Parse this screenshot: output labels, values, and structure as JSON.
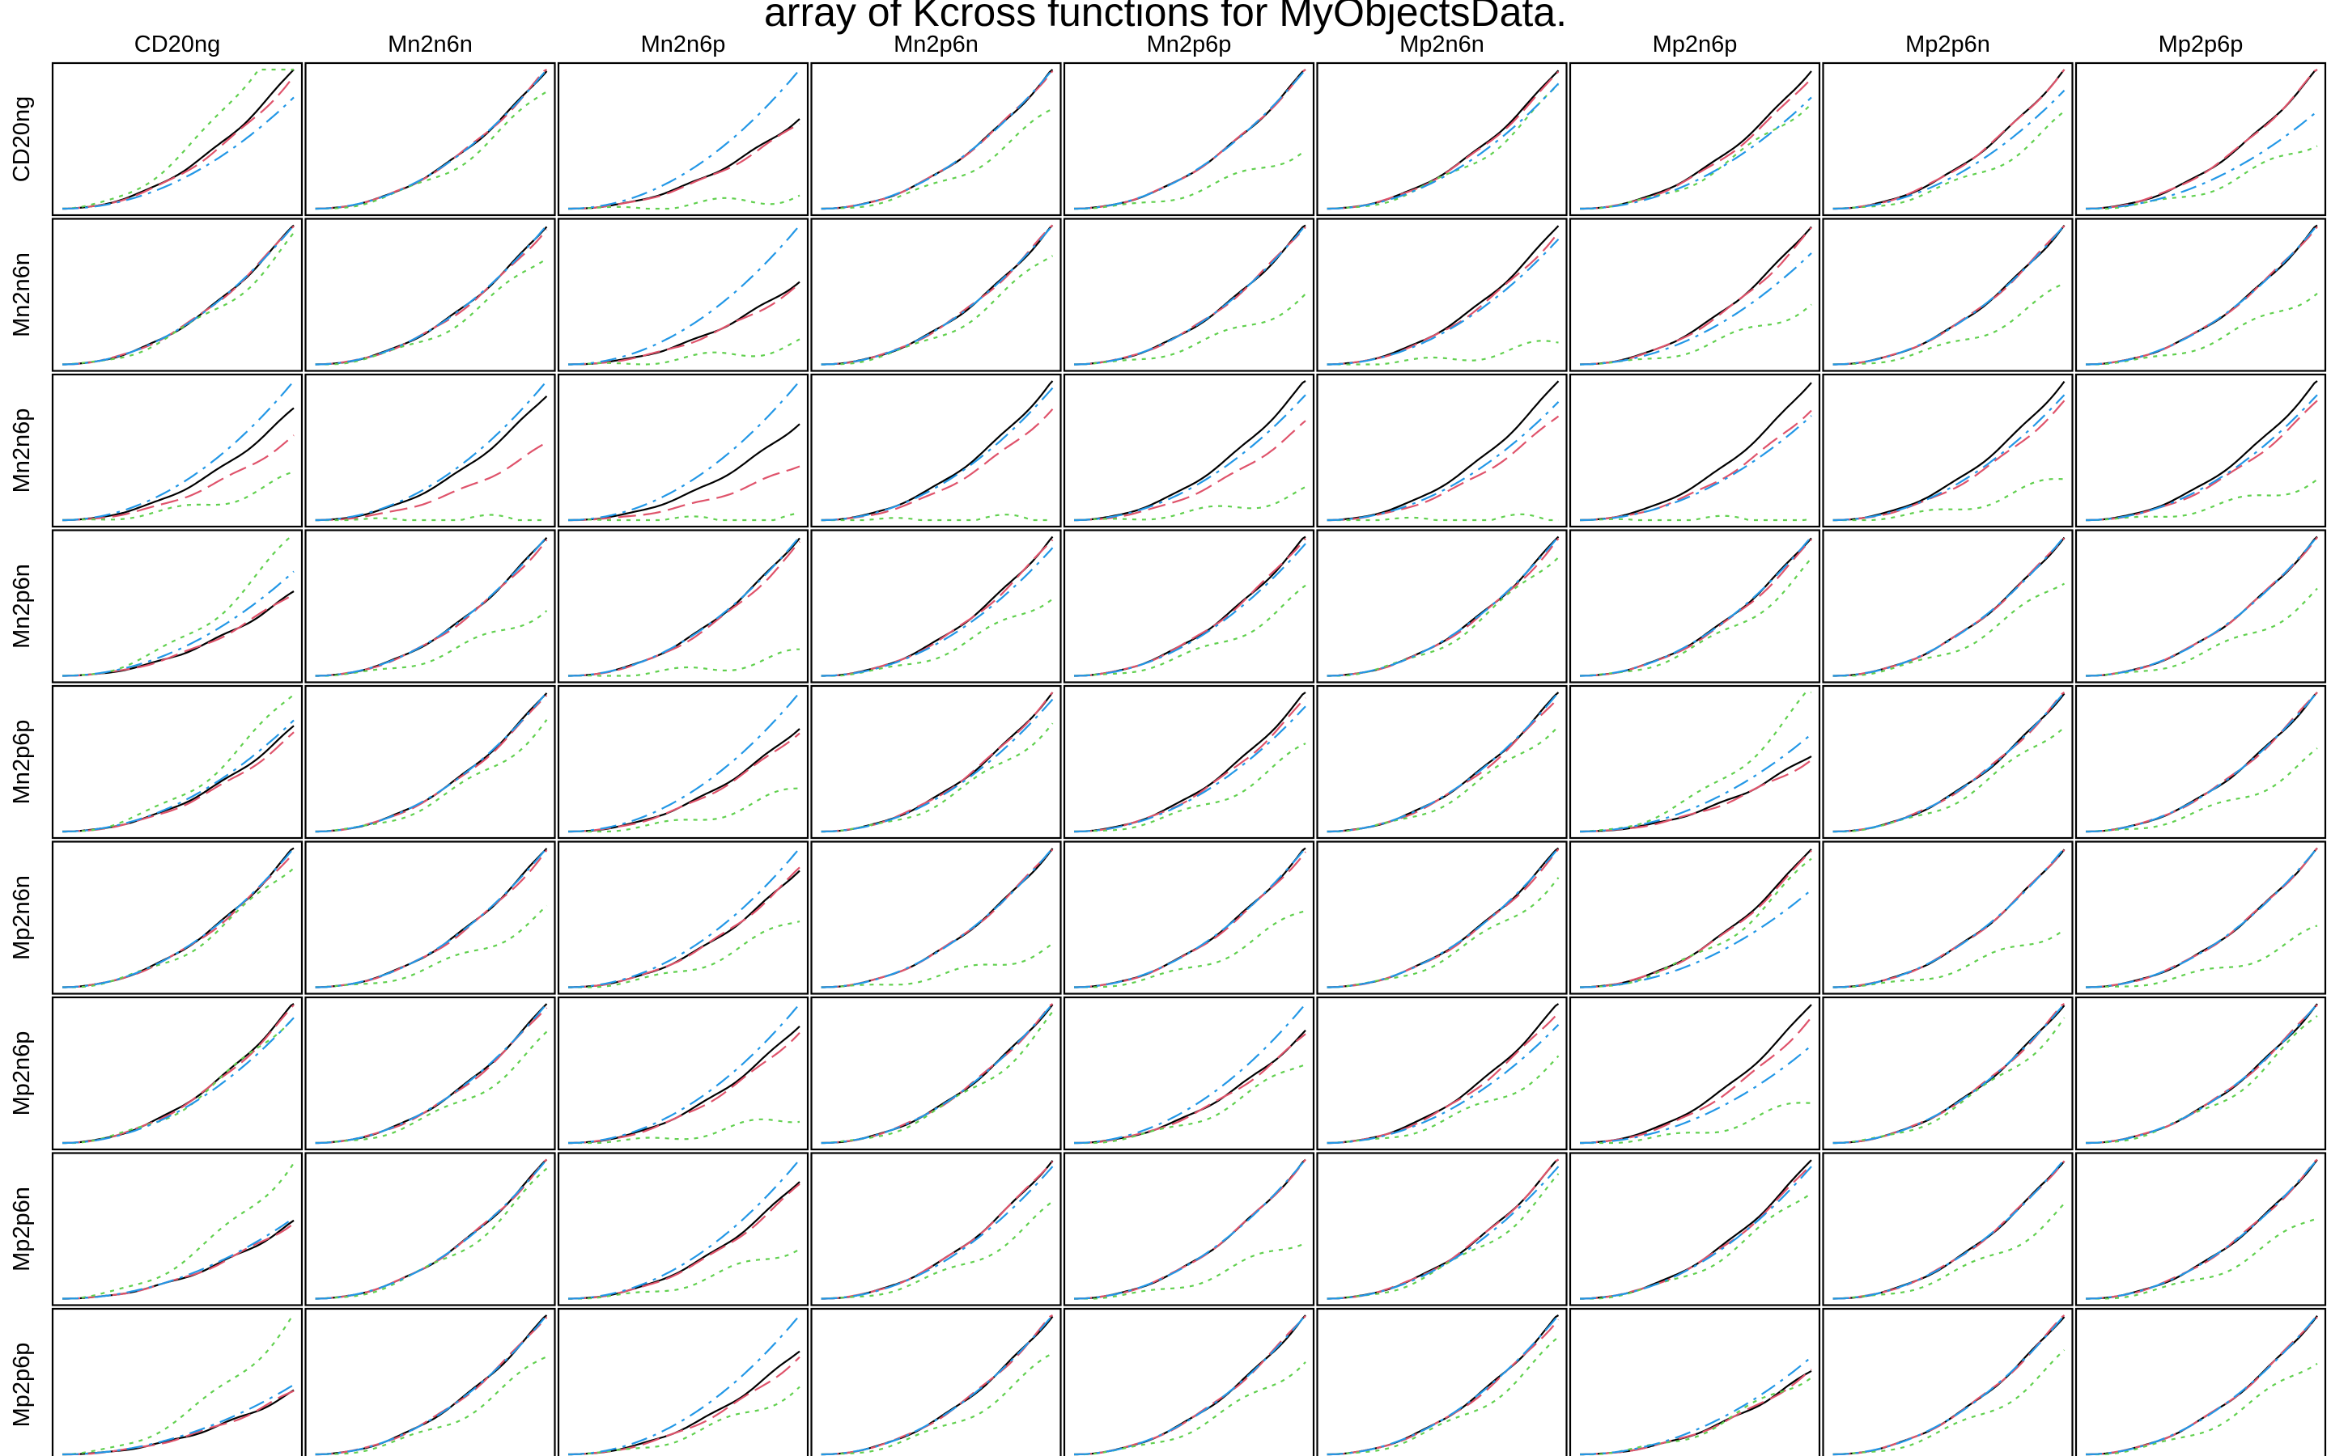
{
  "chart_data": {
    "type": "line",
    "title": "array of Kcross functions for MyObjectsData.",
    "columns": [
      "CD20ng",
      "Mn2n6n",
      "Mn2n6p",
      "Mn2p6n",
      "Mn2p6p",
      "Mp2n6n",
      "Mp2n6p",
      "Mp2p6n",
      "Mp2p6p"
    ],
    "rows": [
      "CD20ng",
      "Mn2n6n",
      "Mn2n6p",
      "Mn2p6n",
      "Mn2p6p",
      "Mp2n6n",
      "Mp2n6p",
      "Mp2p6n",
      "Mp2p6p"
    ],
    "xlabel": "",
    "ylabel": "",
    "grid": false,
    "legend": "none",
    "series": [
      {
        "style": "solid",
        "color": "#000000"
      },
      {
        "style": "dashed",
        "color": "#DF536B"
      },
      {
        "style": "dotted",
        "color": "#61D04F"
      },
      {
        "style": "dotdash",
        "color": "#2297E6"
      }
    ],
    "panel_ratios": [
      [
        [
          1.0,
          0.95,
          1.45,
          0.8
        ],
        [
          1.0,
          1.0,
          0.85,
          1.0
        ],
        [
          0.65,
          0.62,
          0.1,
          1.0
        ],
        [
          1.0,
          1.0,
          0.7,
          1.0
        ],
        [
          1.0,
          1.0,
          0.45,
          1.0
        ],
        [
          1.0,
          0.98,
          0.85,
          0.9
        ],
        [
          1.0,
          0.95,
          0.8,
          0.8
        ],
        [
          1.0,
          1.0,
          0.65,
          0.85
        ],
        [
          1.0,
          1.0,
          0.5,
          0.7
        ]
      ],
      [
        [
          1.0,
          1.0,
          0.9,
          1.0
        ],
        [
          1.0,
          0.98,
          0.8,
          1.0
        ],
        [
          0.6,
          0.57,
          0.15,
          1.0
        ],
        [
          1.0,
          1.0,
          0.8,
          1.0
        ],
        [
          1.0,
          1.0,
          0.5,
          1.0
        ],
        [
          1.0,
          0.95,
          0.15,
          0.9
        ],
        [
          1.0,
          0.97,
          0.45,
          0.8
        ],
        [
          1.0,
          1.0,
          0.55,
          1.0
        ],
        [
          1.0,
          1.0,
          0.55,
          1.0
        ]
      ],
      [
        [
          0.8,
          0.6,
          0.3,
          1.0
        ],
        [
          0.9,
          0.55,
          0.0,
          1.0
        ],
        [
          0.7,
          0.4,
          0.0,
          1.0
        ],
        [
          1.0,
          0.8,
          0.0,
          0.95
        ],
        [
          1.0,
          0.7,
          0.2,
          0.9
        ],
        [
          1.0,
          0.75,
          0.0,
          0.85
        ],
        [
          1.0,
          0.8,
          0.0,
          0.75
        ],
        [
          1.0,
          0.85,
          0.3,
          0.9
        ],
        [
          1.0,
          0.85,
          0.3,
          0.9
        ]
      ],
      [
        [
          0.6,
          0.6,
          1.0,
          0.75
        ],
        [
          1.0,
          0.98,
          0.5,
          1.0
        ],
        [
          1.0,
          0.95,
          0.15,
          1.0
        ],
        [
          1.0,
          0.98,
          0.6,
          0.92
        ],
        [
          1.0,
          1.0,
          0.6,
          0.95
        ],
        [
          1.0,
          0.98,
          0.9,
          1.0
        ],
        [
          1.0,
          0.97,
          0.8,
          1.0
        ],
        [
          1.0,
          1.0,
          0.7,
          1.0
        ],
        [
          1.0,
          1.0,
          0.6,
          1.0
        ]
      ],
      [
        [
          0.75,
          0.7,
          1.0,
          0.8
        ],
        [
          1.0,
          0.98,
          0.8,
          1.0
        ],
        [
          0.75,
          0.72,
          0.3,
          1.0
        ],
        [
          1.0,
          1.0,
          0.8,
          0.95
        ],
        [
          1.0,
          0.95,
          0.6,
          0.9
        ],
        [
          1.0,
          0.97,
          0.8,
          1.0
        ],
        [
          0.55,
          0.52,
          1.0,
          0.7
        ],
        [
          1.0,
          1.0,
          0.8,
          1.0
        ],
        [
          1.0,
          1.0,
          0.55,
          1.0
        ]
      ],
      [
        [
          1.0,
          0.98,
          0.9,
          1.0
        ],
        [
          1.0,
          0.98,
          0.55,
          1.0
        ],
        [
          0.85,
          0.85,
          0.5,
          1.0
        ],
        [
          1.0,
          1.0,
          0.3,
          1.0
        ],
        [
          1.0,
          0.98,
          0.55,
          1.0
        ],
        [
          1.0,
          0.98,
          0.8,
          1.0
        ],
        [
          1.0,
          0.98,
          0.9,
          0.7
        ],
        [
          1.0,
          1.0,
          0.45,
          1.0
        ],
        [
          1.0,
          1.0,
          0.4,
          1.0
        ]
      ],
      [
        [
          1.0,
          0.98,
          0.95,
          0.9
        ],
        [
          1.0,
          0.98,
          0.75,
          1.0
        ],
        [
          0.85,
          0.8,
          0.2,
          1.0
        ],
        [
          1.0,
          1.0,
          0.9,
          1.0
        ],
        [
          0.8,
          0.78,
          0.6,
          1.0
        ],
        [
          1.0,
          0.95,
          0.6,
          0.85
        ],
        [
          1.0,
          0.9,
          0.3,
          0.7
        ],
        [
          1.0,
          1.0,
          0.9,
          1.0
        ],
        [
          1.0,
          1.0,
          0.9,
          1.0
        ]
      ],
      [
        [
          0.55,
          0.55,
          1.0,
          0.58
        ],
        [
          1.0,
          1.0,
          0.9,
          1.0
        ],
        [
          0.85,
          0.82,
          0.4,
          1.0
        ],
        [
          1.0,
          1.0,
          0.65,
          0.95
        ],
        [
          1.0,
          1.0,
          0.45,
          1.0
        ],
        [
          1.0,
          1.0,
          0.85,
          0.95
        ],
        [
          1.0,
          0.97,
          0.8,
          0.95
        ],
        [
          1.0,
          1.0,
          0.65,
          1.0
        ],
        [
          1.0,
          1.0,
          0.6,
          1.0
        ]
      ],
      [
        [
          0.45,
          0.45,
          1.0,
          0.5
        ],
        [
          1.0,
          1.0,
          0.7,
          1.0
        ],
        [
          0.75,
          0.7,
          0.5,
          1.0
        ],
        [
          1.0,
          1.0,
          0.7,
          1.0
        ],
        [
          1.0,
          1.0,
          0.7,
          1.0
        ],
        [
          1.0,
          0.98,
          0.8,
          1.0
        ],
        [
          0.6,
          0.6,
          0.6,
          0.7
        ],
        [
          1.0,
          1.0,
          0.7,
          1.0
        ],
        [
          1.0,
          1.0,
          0.7,
          1.0
        ]
      ]
    ]
  }
}
